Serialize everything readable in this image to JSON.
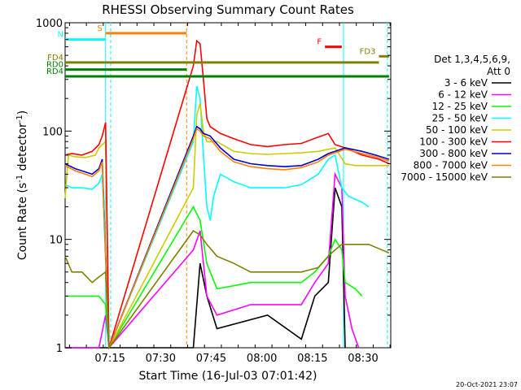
{
  "chart_data": {
    "type": "line",
    "title": "RHESSI Observing Summary Count Rates",
    "xlabel": "Start Time (16-Jul-03 07:01:42)",
    "ylabel_main": "Count Rate (s",
    "ylabel_sup1": "-1",
    "ylabel_mid": " detector",
    "ylabel_sup2": "-1",
    "ylabel_end": ")",
    "timestamp": "20-Oct-2021 23:07",
    "y_scale": "log",
    "ylim": [
      1,
      1000
    ],
    "xlim_minutes": [
      0,
      96.5
    ],
    "x_ticks": [
      {
        "label": "07:15",
        "minute": 13.3
      },
      {
        "label": "07:30",
        "minute": 28.3
      },
      {
        "label": "07:45",
        "minute": 43.3
      },
      {
        "label": "08:00",
        "minute": 58.3
      },
      {
        "label": "08:15",
        "minute": 73.3
      },
      {
        "label": "08:30",
        "minute": 88.3
      }
    ],
    "y_ticks": [
      {
        "label": "1",
        "value": 1
      },
      {
        "label": "10",
        "value": 10
      },
      {
        "label": "100",
        "value": 100
      },
      {
        "label": "1000",
        "value": 1000
      }
    ],
    "legend": {
      "header1": "Det 1,3,4,5,6,9,",
      "header2": "Att 0",
      "placement": "right",
      "entries": [
        {
          "label": "3 - 6 keV",
          "color": "#000000"
        },
        {
          "label": "6 - 12 keV",
          "color": "#ff00ff"
        },
        {
          "label": "12 - 25 keV",
          "color": "#00ff00"
        },
        {
          "label": "25 - 50 keV",
          "color": "#00ffff"
        },
        {
          "label": "50 - 100 keV",
          "color": "#cccc00"
        },
        {
          "label": "100 - 300 keV",
          "color": "#ff0000"
        },
        {
          "label": "300 - 800 keV",
          "color": "#0000cc"
        },
        {
          "label": "800 - 7000 keV",
          "color": "#ff8000"
        },
        {
          "label": "7000 - 15000 keV",
          "color": "#808000"
        }
      ]
    },
    "series": [
      {
        "name": "3 - 6 keV",
        "color": "#000000",
        "points": [
          [
            0,
            1
          ],
          [
            13,
            1
          ],
          [
            38,
            1
          ],
          [
            40,
            6
          ],
          [
            42,
            3
          ],
          [
            45,
            1.5
          ],
          [
            60,
            2
          ],
          [
            70,
            1.2
          ],
          [
            74,
            3
          ],
          [
            78,
            4
          ],
          [
            80,
            30
          ],
          [
            82,
            20
          ],
          [
            83,
            1
          ]
        ]
      },
      {
        "name": "6 - 12 keV",
        "color": "#ff00ff",
        "points": [
          [
            0,
            1
          ],
          [
            10,
            1
          ],
          [
            12,
            2
          ],
          [
            13,
            1
          ],
          [
            38,
            8
          ],
          [
            40,
            12
          ],
          [
            42,
            3
          ],
          [
            45,
            2
          ],
          [
            55,
            2.5
          ],
          [
            60,
            2.5
          ],
          [
            70,
            2.5
          ],
          [
            74,
            4
          ],
          [
            78,
            6
          ],
          [
            80,
            40
          ],
          [
            82,
            30
          ],
          [
            83,
            3
          ],
          [
            85,
            1.5
          ],
          [
            87,
            1
          ]
        ]
      },
      {
        "name": "12 - 25 keV",
        "color": "#00ff00",
        "points": [
          [
            0,
            3
          ],
          [
            10,
            3
          ],
          [
            12,
            2.5
          ],
          [
            13,
            1
          ],
          [
            38,
            20
          ],
          [
            40,
            15
          ],
          [
            42,
            6
          ],
          [
            45,
            3.5
          ],
          [
            55,
            4
          ],
          [
            60,
            4
          ],
          [
            70,
            4
          ],
          [
            74,
            5
          ],
          [
            78,
            7
          ],
          [
            80,
            10
          ],
          [
            82,
            8
          ],
          [
            83,
            4
          ],
          [
            86,
            3.5
          ],
          [
            88,
            3
          ]
        ]
      },
      {
        "name": "25 - 50 keV",
        "color": "#00ffff",
        "points": [
          [
            0,
            32
          ],
          [
            2,
            30
          ],
          [
            5,
            30
          ],
          [
            8,
            29
          ],
          [
            10,
            33
          ],
          [
            11,
            40
          ],
          [
            13,
            1
          ],
          [
            38,
            80
          ],
          [
            39,
            260
          ],
          [
            40,
            200
          ],
          [
            41,
            60
          ],
          [
            42,
            20
          ],
          [
            43,
            15
          ],
          [
            44,
            25
          ],
          [
            46,
            40
          ],
          [
            50,
            34
          ],
          [
            55,
            30
          ],
          [
            60,
            30
          ],
          [
            65,
            30
          ],
          [
            70,
            32
          ],
          [
            75,
            40
          ],
          [
            78,
            55
          ],
          [
            80,
            60
          ],
          [
            82,
            30
          ],
          [
            84,
            25
          ],
          [
            88,
            22
          ],
          [
            90,
            20
          ]
        ]
      },
      {
        "name": "50 - 100 keV",
        "color": "#cccc00",
        "points": [
          [
            0,
            24
          ],
          [
            1,
            60
          ],
          [
            3,
            58
          ],
          [
            6,
            57
          ],
          [
            9,
            60
          ],
          [
            10,
            70
          ],
          [
            12,
            80
          ],
          [
            13,
            1
          ],
          [
            38,
            30
          ],
          [
            39,
            140
          ],
          [
            40,
            180
          ],
          [
            41,
            100
          ],
          [
            42,
            80
          ],
          [
            45,
            80
          ],
          [
            50,
            65
          ],
          [
            55,
            62
          ],
          [
            60,
            61
          ],
          [
            65,
            62
          ],
          [
            70,
            63
          ],
          [
            75,
            65
          ],
          [
            78,
            68
          ],
          [
            80,
            70
          ],
          [
            83,
            50
          ],
          [
            86,
            48
          ],
          [
            90,
            48
          ],
          [
            96,
            48
          ]
        ]
      },
      {
        "name": "100 - 300 keV",
        "color": "#ff0000",
        "points": [
          [
            0,
            60
          ],
          [
            2,
            62
          ],
          [
            5,
            60
          ],
          [
            8,
            65
          ],
          [
            10,
            75
          ],
          [
            11,
            90
          ],
          [
            12,
            120
          ],
          [
            13,
            1
          ],
          [
            38,
            400
          ],
          [
            39,
            680
          ],
          [
            40,
            640
          ],
          [
            41,
            300
          ],
          [
            42,
            130
          ],
          [
            43,
            110
          ],
          [
            46,
            95
          ],
          [
            50,
            85
          ],
          [
            55,
            75
          ],
          [
            60,
            72
          ],
          [
            65,
            75
          ],
          [
            70,
            77
          ],
          [
            75,
            88
          ],
          [
            78,
            95
          ],
          [
            80,
            75
          ],
          [
            83,
            70
          ],
          [
            88,
            60
          ],
          [
            93,
            55
          ],
          [
            96,
            50
          ]
        ]
      },
      {
        "name": "300 - 800 keV",
        "color": "#0000cc",
        "points": [
          [
            0,
            50
          ],
          [
            3,
            45
          ],
          [
            6,
            42
          ],
          [
            8,
            40
          ],
          [
            10,
            45
          ],
          [
            11,
            55
          ],
          [
            13,
            1
          ],
          [
            38,
            90
          ],
          [
            39,
            110
          ],
          [
            40,
            105
          ],
          [
            41,
            95
          ],
          [
            43,
            90
          ],
          [
            46,
            70
          ],
          [
            50,
            55
          ],
          [
            55,
            50
          ],
          [
            60,
            48
          ],
          [
            65,
            47
          ],
          [
            70,
            48
          ],
          [
            75,
            55
          ],
          [
            78,
            62
          ],
          [
            80,
            65
          ],
          [
            83,
            70
          ],
          [
            88,
            65
          ],
          [
            92,
            60
          ],
          [
            96,
            55
          ]
        ]
      },
      {
        "name": "800 - 7000 keV",
        "color": "#ff8000",
        "points": [
          [
            0,
            48
          ],
          [
            3,
            43
          ],
          [
            6,
            40
          ],
          [
            8,
            38
          ],
          [
            10,
            43
          ],
          [
            11,
            52
          ],
          [
            13,
            1
          ],
          [
            38,
            85
          ],
          [
            39,
            105
          ],
          [
            40,
            100
          ],
          [
            41,
            90
          ],
          [
            43,
            85
          ],
          [
            46,
            65
          ],
          [
            50,
            52
          ],
          [
            55,
            47
          ],
          [
            60,
            45
          ],
          [
            65,
            44
          ],
          [
            70,
            46
          ],
          [
            75,
            52
          ],
          [
            78,
            60
          ],
          [
            80,
            63
          ],
          [
            83,
            68
          ],
          [
            88,
            62
          ],
          [
            92,
            58
          ],
          [
            96,
            53
          ]
        ]
      },
      {
        "name": "7000 - 15000 keV",
        "color": "#808000",
        "points": [
          [
            0,
            7
          ],
          [
            2,
            5
          ],
          [
            5,
            5
          ],
          [
            8,
            4
          ],
          [
            10,
            4.5
          ],
          [
            12,
            5
          ],
          [
            13,
            1
          ],
          [
            38,
            12
          ],
          [
            40,
            11
          ],
          [
            42,
            9
          ],
          [
            45,
            7
          ],
          [
            50,
            6
          ],
          [
            55,
            5
          ],
          [
            60,
            5
          ],
          [
            70,
            5
          ],
          [
            75,
            5.5
          ],
          [
            78,
            7
          ],
          [
            80,
            8
          ],
          [
            82,
            9
          ],
          [
            86,
            9
          ],
          [
            90,
            9
          ],
          [
            96,
            7.5
          ]
        ]
      }
    ],
    "attenuator_bars": [
      {
        "label": "S",
        "color": "#ff8000",
        "start": 12,
        "end": 36,
        "value": 800
      },
      {
        "label": "N",
        "color": "#00ffff",
        "start": 0,
        "end": 12,
        "value": 700
      },
      {
        "label": "F",
        "color": "#ff0000",
        "start": 77,
        "end": 82,
        "value": 600
      },
      {
        "label": "FD3",
        "color": "#808000",
        "start": 93,
        "end": 96,
        "value": 490
      },
      {
        "label": "FD4",
        "color": "#808000",
        "start": 0,
        "end": 93,
        "value": 430
      },
      {
        "label": "RD0",
        "color": "#008000",
        "start": 0,
        "end": 36,
        "value": 370
      },
      {
        "label": "RD4",
        "color": "#008000",
        "start": 0,
        "end": 96,
        "value": 320
      }
    ],
    "vertical_lines": [
      {
        "minute": 12.0,
        "color": "#00ffff",
        "style": "solid"
      },
      {
        "minute": 13.5,
        "color": "#00ffff",
        "style": "dashed"
      },
      {
        "minute": 36.0,
        "color": "#ff8000",
        "style": "dashed"
      },
      {
        "minute": 82.5,
        "color": "#00ffff",
        "style": "solid"
      },
      {
        "minute": 95.5,
        "color": "#00ffff",
        "style": "dashed"
      }
    ]
  }
}
